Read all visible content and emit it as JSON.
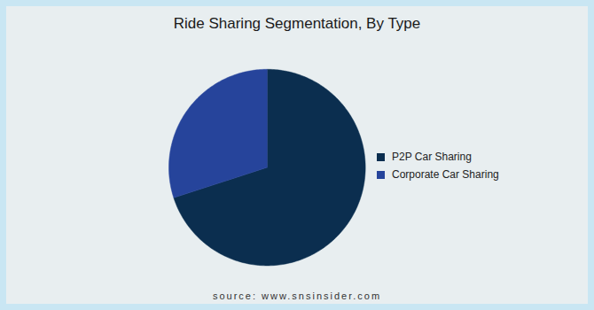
{
  "chart_data": {
    "type": "pie",
    "title": "Ride Sharing Segmentation, By Type",
    "categories": [
      "P2P Car Sharing",
      "Corporate Car Sharing"
    ],
    "values": [
      70,
      30
    ],
    "colors": [
      "#0b2e4f",
      "#26449b"
    ],
    "legend": "right",
    "data_labels": false,
    "source": "source: www.snsinsider.com"
  }
}
